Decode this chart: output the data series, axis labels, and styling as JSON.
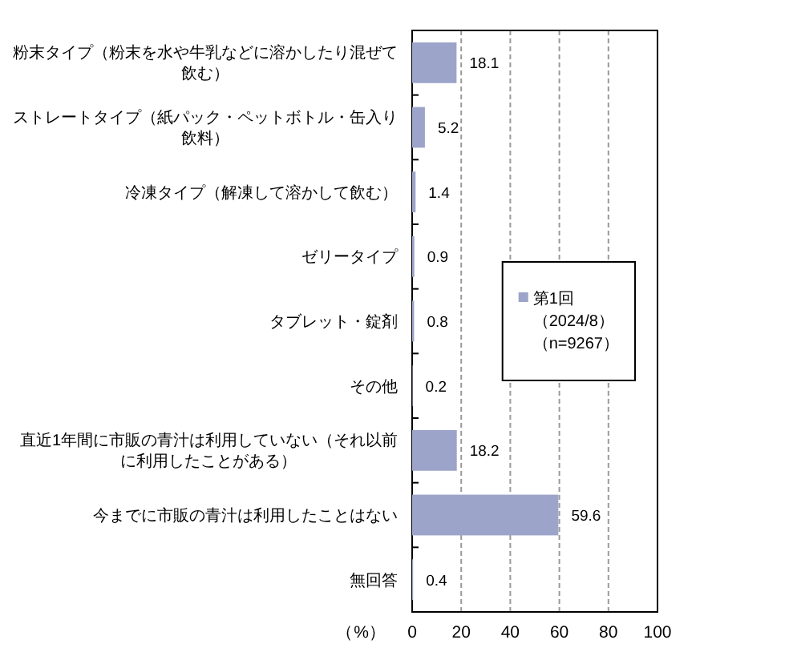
{
  "chart_data": {
    "type": "bar",
    "orientation": "horizontal",
    "categories": [
      "粉末タイプ（粉末を水や牛乳などに溶かしたり混ぜて飲む）",
      "ストレートタイプ（紙パック・ペットボトル・缶入り飲料）",
      "冷凍タイプ（解凍して溶かして飲む）",
      "ゼリータイプ",
      "タブレット・錠剤",
      "その他",
      "直近1年間に市販の青汁は利用していない（それ以前に利用したことがある）",
      "今までに市販の青汁は利用したことはない",
      "無回答"
    ],
    "series": [
      {
        "name": "第1回（2024/8）（n=9267）",
        "color": "#9ca4c9",
        "values": [
          18.1,
          5.2,
          1.4,
          0.9,
          0.8,
          0.2,
          18.2,
          59.6,
          0.4
        ]
      }
    ],
    "xlabel": "（%）",
    "xlim": [
      0,
      100
    ],
    "xticks": [
      0,
      20,
      40,
      60,
      80,
      100
    ],
    "grid": "x",
    "legend": "right",
    "data_labels": true
  }
}
